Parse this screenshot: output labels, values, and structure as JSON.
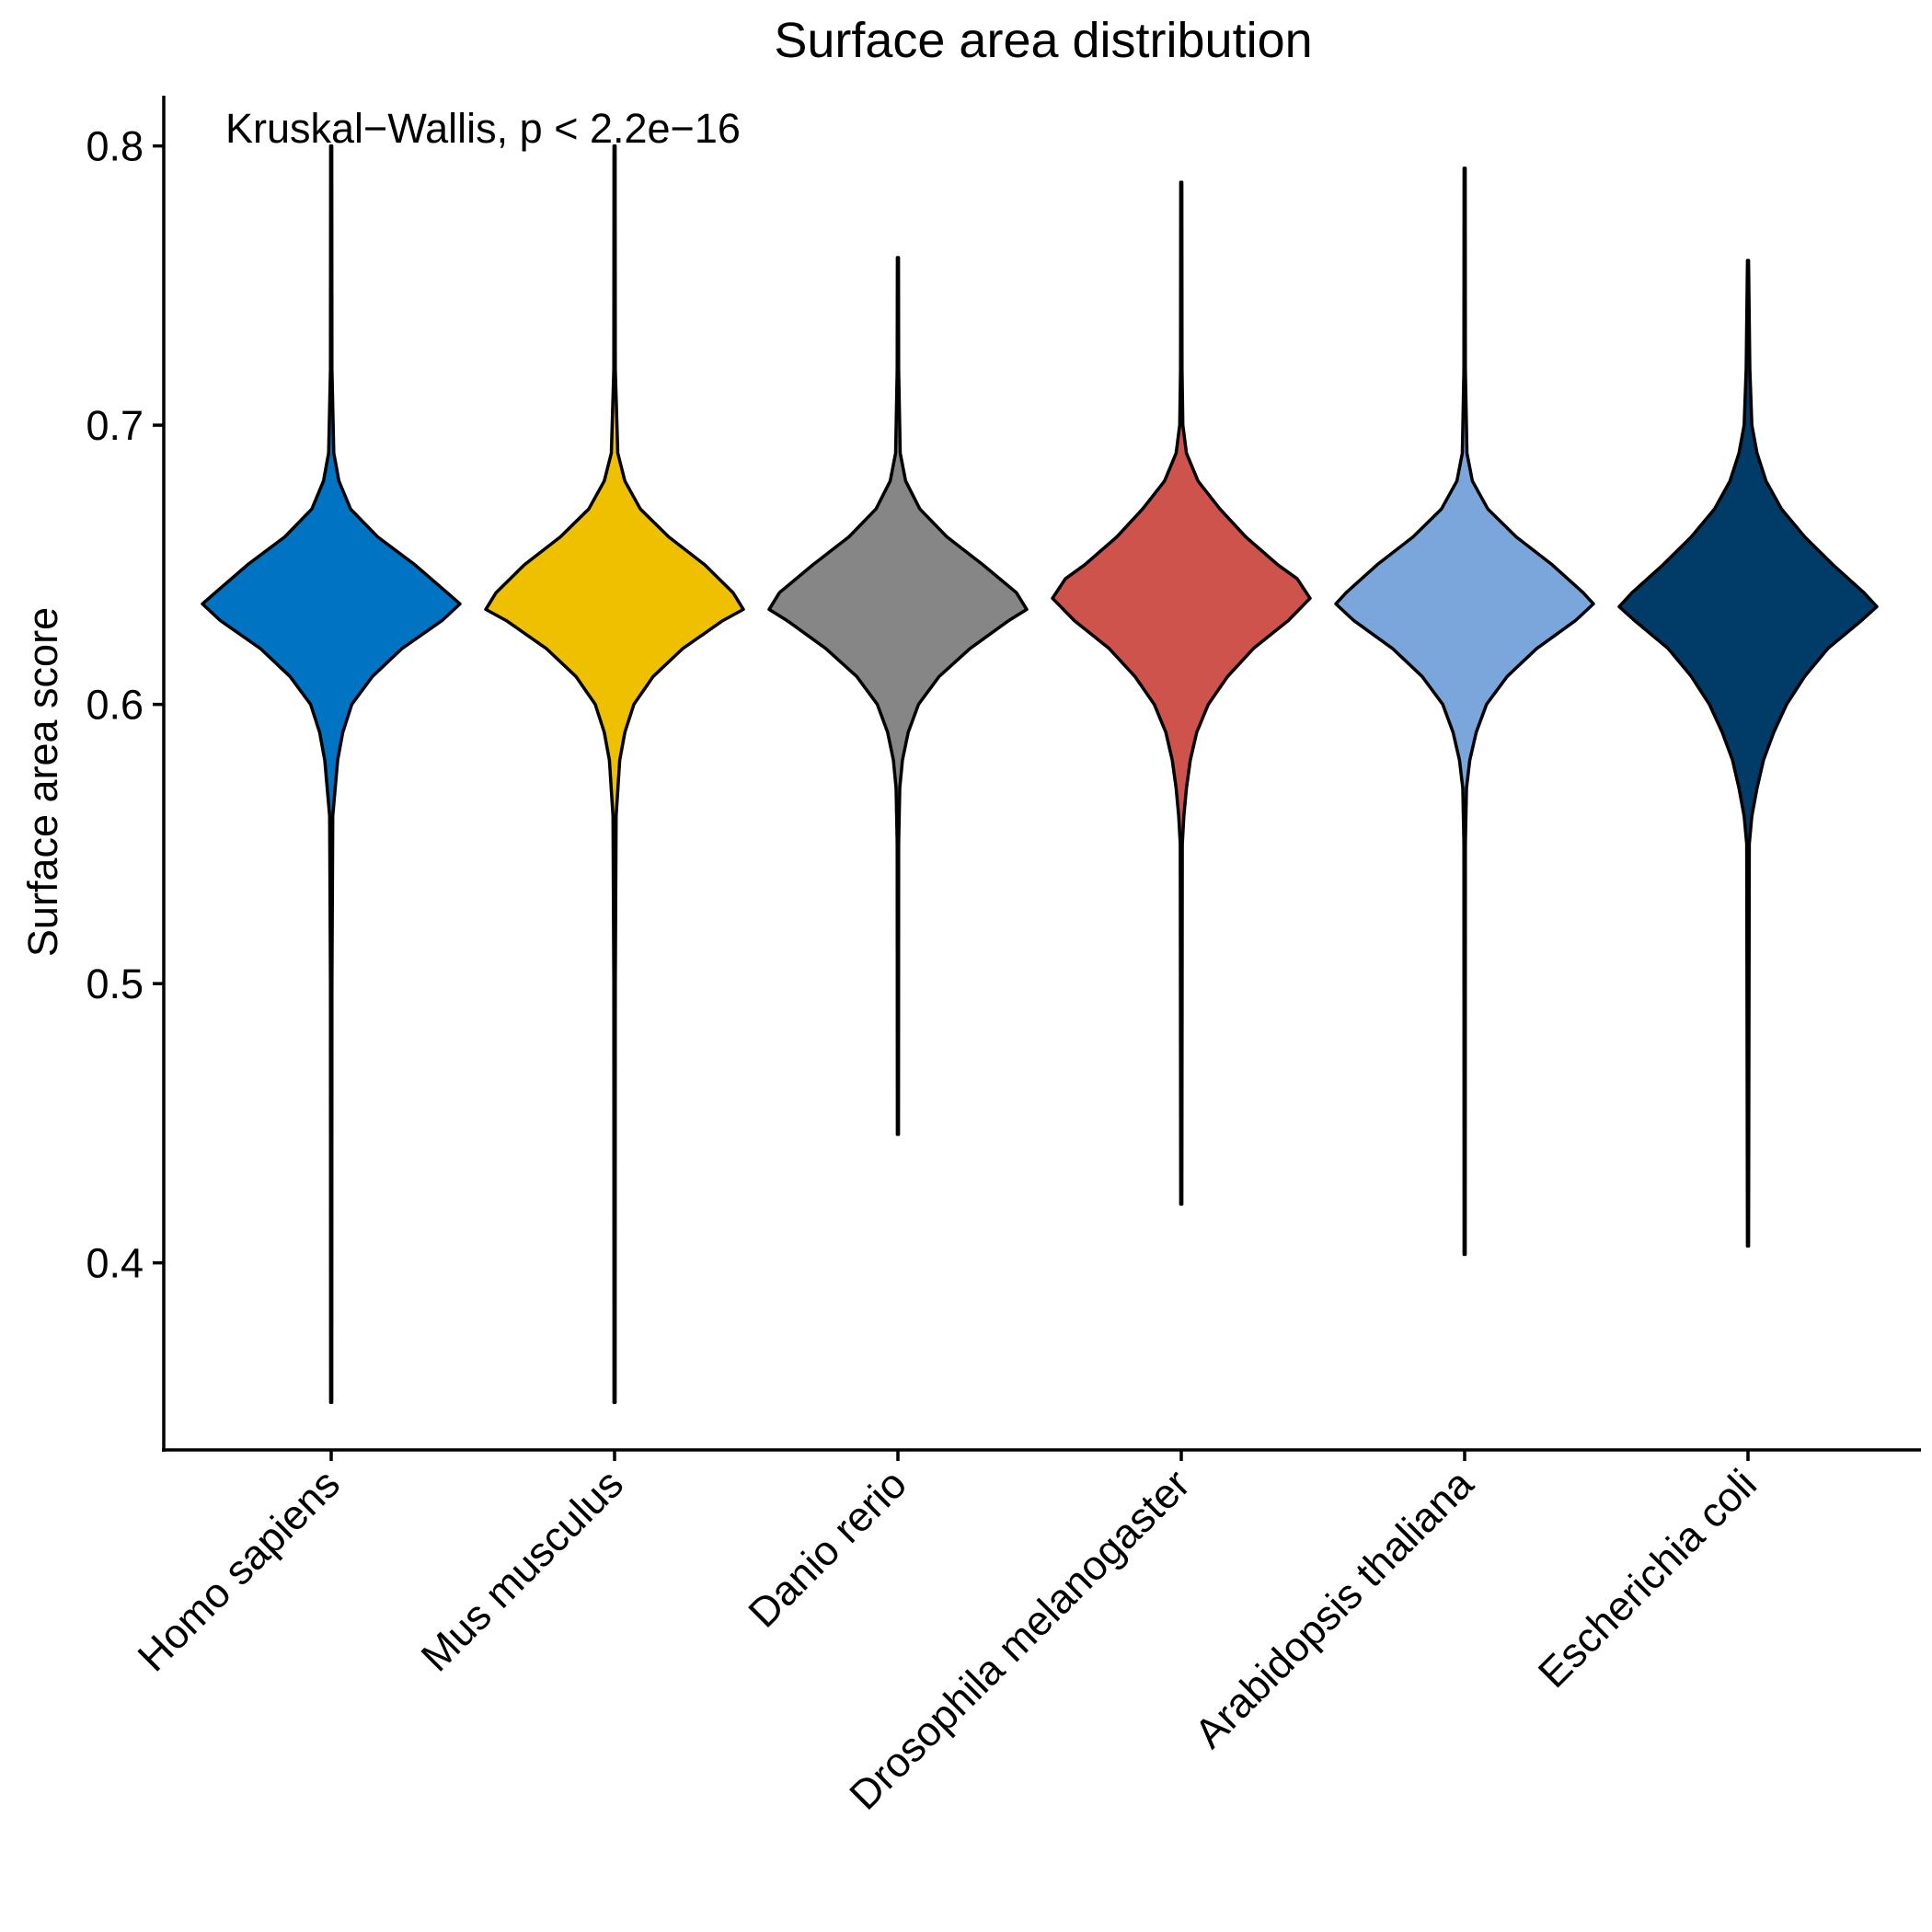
{
  "chart_data": {
    "type": "violin",
    "title": "Surface area distribution",
    "xlabel": "",
    "ylabel": "Surface area score",
    "annotation": "Kruskal−Wallis, p < 2.2e−16",
    "ylim": [
      0.333,
      0.818
    ],
    "yticks": [
      0.4,
      0.5,
      0.6,
      0.7,
      0.8
    ],
    "ytick_labels": [
      "0.4",
      "0.5",
      "0.6",
      "0.7",
      "0.8"
    ],
    "grid": false,
    "legend": "none",
    "categories": [
      "Homo sapiens",
      "Mus musculus",
      "Danio rerio",
      "Drosophila melanogaster",
      "Arabidopsis thaliana",
      "Escherichia coli"
    ],
    "series": [
      {
        "category": "Homo sapiens",
        "color": "#0073C2",
        "min": 0.354,
        "max": 0.796,
        "peak": 0.636,
        "profile": [
          [
            0.35,
            0.004
          ],
          [
            0.5,
            0.006
          ],
          [
            0.56,
            0.012
          ],
          [
            0.58,
            0.05
          ],
          [
            0.59,
            0.09
          ],
          [
            0.6,
            0.16
          ],
          [
            0.61,
            0.32
          ],
          [
            0.62,
            0.55
          ],
          [
            0.63,
            0.86
          ],
          [
            0.636,
            1.0
          ],
          [
            0.64,
            0.9
          ],
          [
            0.65,
            0.65
          ],
          [
            0.66,
            0.36
          ],
          [
            0.67,
            0.15
          ],
          [
            0.68,
            0.06
          ],
          [
            0.69,
            0.02
          ],
          [
            0.72,
            0.006
          ],
          [
            0.8,
            0.004
          ]
        ]
      },
      {
        "category": "Mus musculus",
        "color": "#EFC000",
        "min": 0.353,
        "max": 0.796,
        "peak": 0.634,
        "profile": [
          [
            0.35,
            0.004
          ],
          [
            0.5,
            0.006
          ],
          [
            0.56,
            0.012
          ],
          [
            0.58,
            0.04
          ],
          [
            0.59,
            0.08
          ],
          [
            0.6,
            0.15
          ],
          [
            0.61,
            0.3
          ],
          [
            0.62,
            0.53
          ],
          [
            0.63,
            0.84
          ],
          [
            0.634,
            1.0
          ],
          [
            0.64,
            0.92
          ],
          [
            0.65,
            0.7
          ],
          [
            0.66,
            0.42
          ],
          [
            0.67,
            0.2
          ],
          [
            0.68,
            0.08
          ],
          [
            0.69,
            0.025
          ],
          [
            0.72,
            0.006
          ],
          [
            0.8,
            0.004
          ]
        ]
      },
      {
        "category": "Danio rerio",
        "color": "#868686",
        "min": 0.446,
        "max": 0.76,
        "peak": 0.634,
        "profile": [
          [
            0.446,
            0.004
          ],
          [
            0.55,
            0.006
          ],
          [
            0.57,
            0.014
          ],
          [
            0.58,
            0.035
          ],
          [
            0.59,
            0.08
          ],
          [
            0.6,
            0.16
          ],
          [
            0.61,
            0.32
          ],
          [
            0.62,
            0.56
          ],
          [
            0.63,
            0.86
          ],
          [
            0.634,
            1.0
          ],
          [
            0.64,
            0.92
          ],
          [
            0.65,
            0.66
          ],
          [
            0.66,
            0.38
          ],
          [
            0.67,
            0.17
          ],
          [
            0.68,
            0.06
          ],
          [
            0.69,
            0.018
          ],
          [
            0.72,
            0.006
          ],
          [
            0.76,
            0.004
          ]
        ]
      },
      {
        "category": "Drosophila melanogaster",
        "color": "#CD534C",
        "min": 0.421,
        "max": 0.787,
        "peak": 0.638,
        "profile": [
          [
            0.421,
            0.004
          ],
          [
            0.55,
            0.008
          ],
          [
            0.56,
            0.02
          ],
          [
            0.57,
            0.04
          ],
          [
            0.58,
            0.07
          ],
          [
            0.59,
            0.12
          ],
          [
            0.6,
            0.21
          ],
          [
            0.61,
            0.36
          ],
          [
            0.62,
            0.56
          ],
          [
            0.63,
            0.83
          ],
          [
            0.638,
            1.0
          ],
          [
            0.645,
            0.9
          ],
          [
            0.65,
            0.75
          ],
          [
            0.66,
            0.5
          ],
          [
            0.67,
            0.3
          ],
          [
            0.68,
            0.13
          ],
          [
            0.69,
            0.04
          ],
          [
            0.7,
            0.012
          ],
          [
            0.72,
            0.006
          ],
          [
            0.787,
            0.004
          ]
        ]
      },
      {
        "category": "Arabidopsis thaliana",
        "color": "#7AA6DC",
        "min": 0.403,
        "max": 0.792,
        "peak": 0.636,
        "profile": [
          [
            0.403,
            0.004
          ],
          [
            0.55,
            0.006
          ],
          [
            0.57,
            0.014
          ],
          [
            0.58,
            0.04
          ],
          [
            0.59,
            0.09
          ],
          [
            0.6,
            0.17
          ],
          [
            0.61,
            0.33
          ],
          [
            0.62,
            0.56
          ],
          [
            0.63,
            0.86
          ],
          [
            0.636,
            1.0
          ],
          [
            0.64,
            0.92
          ],
          [
            0.65,
            0.68
          ],
          [
            0.66,
            0.4
          ],
          [
            0.67,
            0.18
          ],
          [
            0.68,
            0.06
          ],
          [
            0.69,
            0.018
          ],
          [
            0.72,
            0.006
          ],
          [
            0.792,
            0.004
          ]
        ]
      },
      {
        "category": "Escherichia coli",
        "color": "#003C67",
        "min": 0.406,
        "max": 0.759,
        "peak": 0.635,
        "profile": [
          [
            0.406,
            0.004
          ],
          [
            0.55,
            0.01
          ],
          [
            0.56,
            0.03
          ],
          [
            0.57,
            0.07
          ],
          [
            0.58,
            0.12
          ],
          [
            0.59,
            0.2
          ],
          [
            0.6,
            0.3
          ],
          [
            0.61,
            0.44
          ],
          [
            0.62,
            0.62
          ],
          [
            0.63,
            0.88
          ],
          [
            0.635,
            1.0
          ],
          [
            0.64,
            0.9
          ],
          [
            0.65,
            0.66
          ],
          [
            0.66,
            0.44
          ],
          [
            0.67,
            0.26
          ],
          [
            0.68,
            0.14
          ],
          [
            0.69,
            0.07
          ],
          [
            0.7,
            0.03
          ],
          [
            0.72,
            0.014
          ],
          [
            0.759,
            0.004
          ]
        ]
      }
    ]
  }
}
